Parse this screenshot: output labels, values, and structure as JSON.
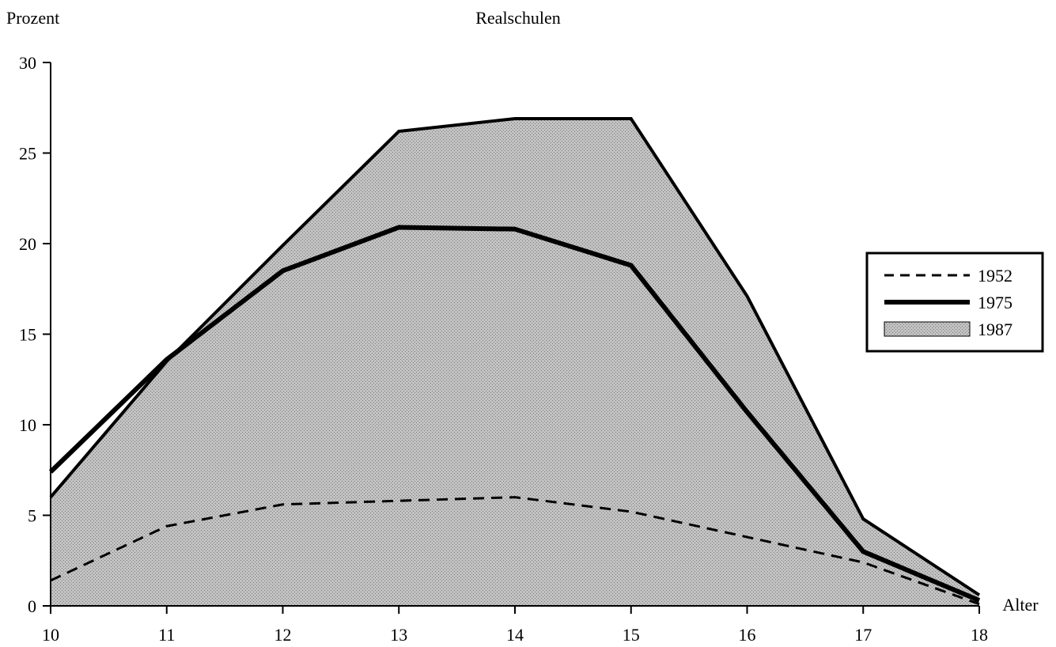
{
  "chart_data": {
    "type": "area",
    "title": "Realschulen",
    "ylabel": "Prozent",
    "xlabel": "Alter",
    "x": [
      10,
      11,
      12,
      13,
      14,
      15,
      16,
      17,
      18
    ],
    "xlim": [
      10,
      18
    ],
    "ylim": [
      0,
      30
    ],
    "y_ticks": [
      0,
      5,
      10,
      15,
      20,
      25,
      30
    ],
    "grid": false,
    "legend_position": "right",
    "series": [
      {
        "name": "1952",
        "style": "dashed",
        "values": [
          1.4,
          4.4,
          5.6,
          5.8,
          6.0,
          5.2,
          3.8,
          2.4,
          0.1
        ]
      },
      {
        "name": "1975",
        "style": "solid",
        "values": [
          7.4,
          13.6,
          18.5,
          20.9,
          20.8,
          18.8,
          10.7,
          3.0,
          0.3
        ]
      },
      {
        "name": "1987",
        "style": "area",
        "values": [
          6.0,
          13.5,
          19.9,
          26.2,
          26.9,
          26.9,
          17.1,
          4.8,
          0.6
        ]
      }
    ],
    "colors": {
      "area_fill": "#bdbdbd",
      "line": "#000000"
    }
  }
}
